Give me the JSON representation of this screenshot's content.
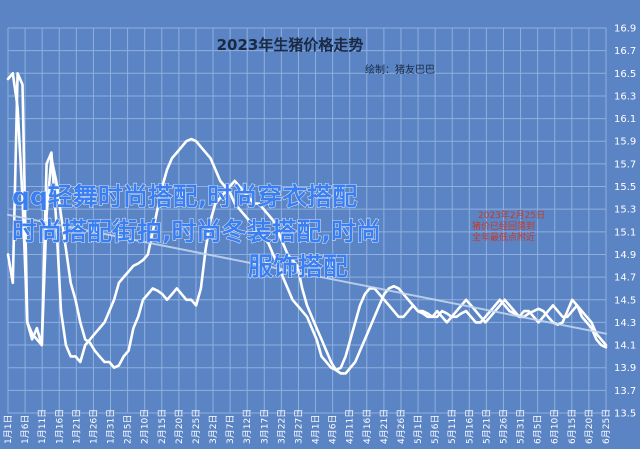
{
  "chart_data": {
    "type": "line",
    "title": "2023年生猪价格走势",
    "subtitle": "绘制：猪友巴巴",
    "xlabel": "",
    "ylabel": "",
    "ylim": [
      13.5,
      16.9
    ],
    "yticks": [
      13.5,
      13.7,
      13.9,
      14.1,
      14.3,
      14.5,
      14.7,
      14.9,
      15.1,
      15.3,
      15.5,
      15.7,
      15.9,
      16.1,
      16.3,
      16.5,
      16.7,
      16.9
    ],
    "xtick_labels": [
      "1月1日",
      "1月6日",
      "1月11日",
      "1月16日",
      "1月21日",
      "1月26日",
      "1月31日",
      "2月5日",
      "2月10日",
      "2月15日",
      "2月20日",
      "2月25日",
      "3月2日",
      "3月7日",
      "3月12日",
      "3月17日",
      "3月22日",
      "3月27日",
      "4月1日",
      "4月6日",
      "4月11日",
      "4月16日",
      "4月21日",
      "4月26日",
      "5月1日",
      "5月6日",
      "5月11日",
      "5月16日",
      "5月21日",
      "5月26日",
      "5月31日",
      "6月5日",
      "6月10日",
      "6月15日",
      "6月20日",
      "6月25日"
    ],
    "grid": true,
    "series": [
      {
        "color": "#ffffff",
        "values": [
          16.45,
          16.5,
          16.2,
          15.4,
          14.3,
          14.15,
          14.25,
          14.1,
          15.25,
          15.75,
          15.55,
          15.25,
          14.95,
          14.65,
          14.5,
          14.3,
          14.15,
          14.12,
          14.05,
          14.0,
          13.95,
          13.95,
          13.9,
          13.92,
          14.0,
          14.05,
          14.25,
          14.35,
          14.5,
          14.55,
          14.6,
          14.58,
          14.55,
          14.5,
          14.55,
          14.6,
          14.55,
          14.5,
          14.5,
          14.45,
          14.6,
          14.95,
          15.2,
          15.35,
          15.4,
          15.45,
          15.5,
          15.55,
          15.5,
          15.45,
          15.4,
          15.35,
          15.35,
          15.3,
          15.25,
          15.2,
          15.1,
          15.0,
          14.9,
          14.85,
          14.8,
          14.6,
          14.45,
          14.35,
          14.25,
          14.15,
          14.05,
          13.95,
          13.88,
          13.85,
          13.85,
          13.9,
          13.95,
          14.05,
          14.15,
          14.25,
          14.35,
          14.45,
          14.55,
          14.6,
          14.62,
          14.6,
          14.55,
          14.5,
          14.45,
          14.4,
          14.4,
          14.38,
          14.35,
          14.35,
          14.4,
          14.38,
          14.35,
          14.35,
          14.38,
          14.4,
          14.35,
          14.3,
          14.3,
          14.35,
          14.4,
          14.45,
          14.5,
          14.45,
          14.4,
          14.38,
          14.35,
          14.35,
          14.38,
          14.4,
          14.42,
          14.4,
          14.35,
          14.3,
          14.28,
          14.3,
          14.4,
          14.5,
          14.45,
          14.35,
          14.3,
          14.25,
          14.15,
          14.1,
          14.08
        ]
      },
      {
        "color": "#ffffff",
        "values": [
          14.9,
          14.65,
          16.5,
          16.4,
          14.3,
          14.2,
          14.15,
          14.1,
          15.7,
          15.8,
          15.2,
          14.4,
          14.1,
          14.0,
          14.0,
          13.95,
          14.1,
          14.15,
          14.2,
          14.25,
          14.3,
          14.4,
          14.5,
          14.65,
          14.7,
          14.75,
          14.8,
          14.82,
          14.85,
          14.9,
          15.1,
          15.3,
          15.5,
          15.65,
          15.75,
          15.8,
          15.85,
          15.9,
          15.92,
          15.9,
          15.85,
          15.8,
          15.75,
          15.65,
          15.55,
          15.5,
          15.45,
          15.35,
          15.3,
          15.25,
          15.2,
          15.15,
          15.1,
          15.05,
          15.0,
          14.9,
          14.8,
          14.7,
          14.6,
          14.5,
          14.45,
          14.4,
          14.35,
          14.25,
          14.15,
          14.0,
          13.95,
          13.9,
          13.88,
          13.9,
          14.0,
          14.15,
          14.3,
          14.45,
          14.55,
          14.6,
          14.6,
          14.55,
          14.5,
          14.45,
          14.4,
          14.35,
          14.35,
          14.4,
          14.45,
          14.4,
          14.38,
          14.35,
          14.35,
          14.4,
          14.35,
          14.3,
          14.35,
          14.4,
          14.45,
          14.5,
          14.45,
          14.4,
          14.35,
          14.3,
          14.35,
          14.4,
          14.45,
          14.5,
          14.45,
          14.4,
          14.35,
          14.4,
          14.4,
          14.35,
          14.3,
          14.35,
          14.4,
          14.45,
          14.4,
          14.35,
          14.35,
          14.4,
          14.45,
          14.4,
          14.35,
          14.3,
          14.2,
          14.15,
          14.1
        ]
      },
      {
        "color": "#c8d8ee",
        "values": [
          15.25,
          14.2
        ]
      }
    ]
  },
  "overlay_text": {
    "line1": "qq轻舞时尚搭配,时尚穿衣搭配",
    "line2": "时尚搭配街拍,时尚冬装搭配,时尚",
    "line3": "服饰搭配"
  },
  "stamp": {
    "date": "2023年2月25日",
    "line2": "猪价已经回落到",
    "line3": "全年最低点附近"
  }
}
